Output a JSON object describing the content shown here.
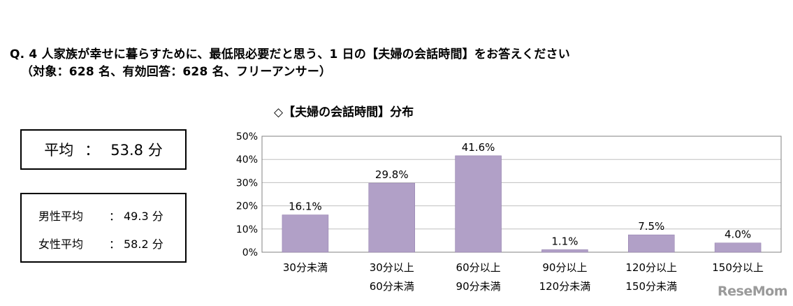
{
  "question": {
    "line1": "Q. 4 人家族が幸せに暮らすために、最低限必要だと思う、1 日の【夫婦の会話時間】をお答えください",
    "line2": "（対象：628 名、有効回答：628 名、フリーアンサー）"
  },
  "average": {
    "label": "平均",
    "sep": "：",
    "value": "53.8 分"
  },
  "gender": {
    "male": {
      "label": "男性平均",
      "sep": "：",
      "value": "49.3 分"
    },
    "female": {
      "label": "女性平均",
      "sep": "：",
      "value": "58.2 分"
    }
  },
  "logo": "ReseMom",
  "colors": {
    "bar": "#b1a0c7",
    "bar_border": "#8e7aa9",
    "plot_border": "#808080",
    "grid": "#bfbfbf"
  },
  "chart_data": {
    "type": "bar",
    "title": "◇【夫婦の会話時間】分布",
    "categories": [
      [
        "30分未満"
      ],
      [
        "30分以上",
        "60分未満"
      ],
      [
        "60分以上",
        "90分未満"
      ],
      [
        "90分以上",
        "120分未満"
      ],
      [
        "120分以上",
        "150分未満"
      ],
      [
        "150分以上"
      ]
    ],
    "values": [
      16.1,
      29.8,
      41.6,
      1.1,
      7.5,
      4.0
    ],
    "value_labels": [
      "16.1%",
      "29.8%",
      "41.6%",
      "1.1%",
      "7.5%",
      "4.0%"
    ],
    "ylim": [
      0,
      50
    ],
    "yticks": [
      0,
      10,
      20,
      30,
      40,
      50
    ],
    "ytick_labels": [
      "0%",
      "10%",
      "20%",
      "30%",
      "40%",
      "50%"
    ],
    "grid": true,
    "xlabel": "",
    "ylabel": ""
  }
}
